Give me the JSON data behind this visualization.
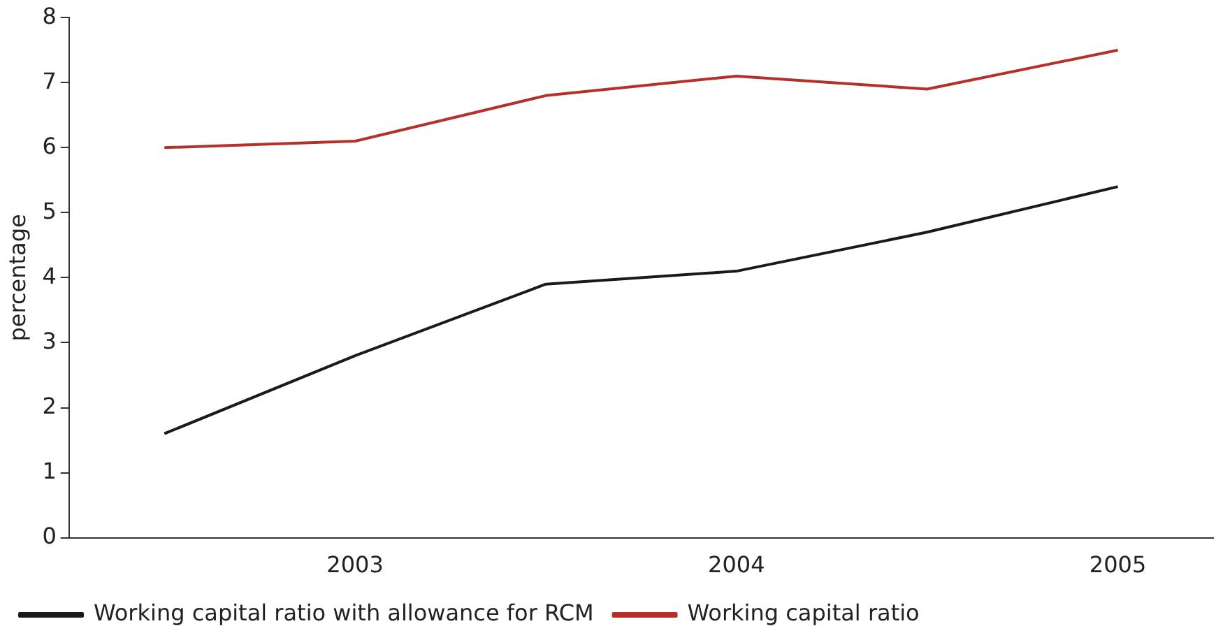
{
  "chart_data": {
    "type": "line",
    "ylabel": "percentage",
    "categories": [
      null,
      "2003",
      null,
      "2004",
      null,
      "2005"
    ],
    "series": [
      {
        "name": "Working capital ratio with allowance for RCM",
        "color": "#1a1a1a",
        "values": [
          1.6,
          2.8,
          3.9,
          4.1,
          4.7,
          5.4
        ]
      },
      {
        "name": "Working capital ratio",
        "color": "#b5302a",
        "values": [
          6.0,
          6.1,
          6.8,
          7.1,
          6.9,
          7.5
        ]
      }
    ],
    "ylim": [
      0,
      8
    ],
    "yticks": [
      0,
      1,
      2,
      3,
      4,
      5,
      6,
      7,
      8
    ],
    "grid": false,
    "legend": "bottom",
    "marker": "none",
    "line_style": "solid"
  }
}
